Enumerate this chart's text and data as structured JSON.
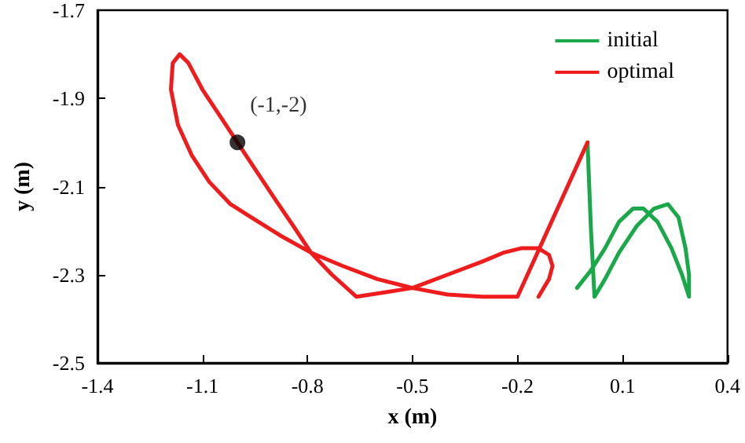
{
  "chart_data": {
    "type": "line",
    "xlabel": "x (m)",
    "ylabel": "y (m)",
    "xlim": [
      -1.4,
      0.4
    ],
    "xticks": [
      -1.4,
      -1.1,
      -0.8,
      -0.5,
      -0.2,
      0.1,
      0.4
    ],
    "ylim": [
      -2.5,
      -1.7
    ],
    "yticks": [
      -2.5,
      -2.3,
      -2.1,
      -1.9,
      -1.7
    ],
    "grid": false,
    "legend": "top right",
    "marker": "none",
    "line_style": "solid",
    "annotations": [
      {
        "text": "(-1,-2)",
        "x": -1,
        "y": -2
      }
    ],
    "series": [
      {
        "name": "initial",
        "color": "#1aa84a",
        "x": [
          0,
          0.01,
          0.02,
          0.05,
          0.09,
          0.14,
          0.19,
          0.23,
          0.26,
          0.28,
          0.29,
          0.29,
          0.27,
          0.24,
          0.2,
          0.16,
          0.13,
          0.09,
          0.05,
          0.01,
          -0.03
        ],
        "values": [
          -2.0,
          -2.2,
          -2.35,
          -2.31,
          -2.25,
          -2.19,
          -2.15,
          -2.14,
          -2.17,
          -2.24,
          -2.3,
          -2.35,
          -2.3,
          -2.24,
          -2.18,
          -2.15,
          -2.15,
          -2.18,
          -2.24,
          -2.29,
          -2.33
        ]
      },
      {
        "name": "optimal",
        "color": "#ee1c1c",
        "x": [
          0,
          -0.1,
          -0.2,
          -0.3,
          -0.4,
          -0.5,
          -0.6,
          -0.7,
          -0.79,
          -0.88,
          -0.96,
          -1.02,
          -1.08,
          -1.13,
          -1.17,
          -1.19,
          -1.185,
          -1.165,
          -1.14,
          -1.1,
          -1.05,
          -1.0,
          -0.95,
          -0.9,
          -0.84,
          -0.79,
          -0.73,
          -0.66,
          -0.58,
          -0.5,
          -0.4,
          -0.3,
          -0.24,
          -0.19,
          -0.14,
          -0.11,
          -0.1,
          -0.11,
          -0.125,
          -0.14
        ],
        "values": [
          -2.0,
          -2.175,
          -2.35,
          -2.35,
          -2.345,
          -2.33,
          -2.31,
          -2.28,
          -2.25,
          -2.21,
          -2.17,
          -2.14,
          -2.09,
          -2.03,
          -1.96,
          -1.88,
          -1.82,
          -1.8,
          -1.82,
          -1.88,
          -1.94,
          -2.0,
          -2.06,
          -2.12,
          -2.19,
          -2.25,
          -2.3,
          -2.35,
          -2.34,
          -2.33,
          -2.3,
          -2.27,
          -2.25,
          -2.24,
          -2.24,
          -2.255,
          -2.28,
          -2.31,
          -2.33,
          -2.35
        ]
      },
      {
        "type": "scatter",
        "color": "#000000",
        "x": [
          -1
        ],
        "values": [
          -2
        ],
        "marker": "circle"
      }
    ]
  }
}
